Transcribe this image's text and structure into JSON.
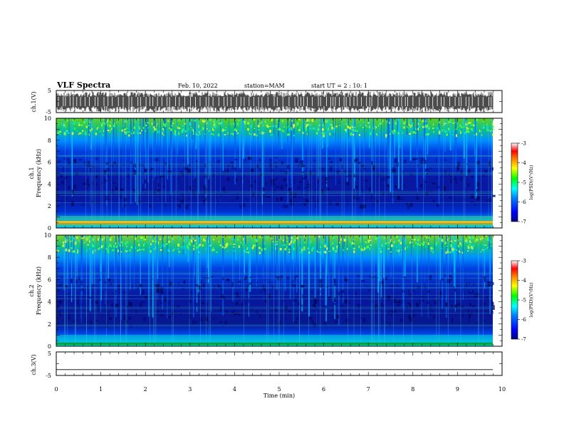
{
  "header": {
    "title": "VLF Spectra",
    "date": "Feb. 10, 2022",
    "station": "station=MAM",
    "start": "start UT = 2 : 10: 1"
  },
  "chart_data": [
    {
      "type": "line",
      "name": "ch1-waveform",
      "ylabel": "ch.1(V)",
      "ylim": [
        -5,
        5
      ],
      "yticks": [
        "5",
        "-5"
      ],
      "xlim": [
        0,
        10
      ]
    },
    {
      "type": "heatmap",
      "name": "ch1-spectrogram",
      "ylabel_line1": "ch.1",
      "ylabel_line2": "Frequency (kHz)",
      "ylim": [
        0,
        10
      ],
      "yticks": [
        "0",
        "2",
        "4",
        "6",
        "8",
        "10"
      ],
      "xlim": [
        0,
        10
      ],
      "colorbar": {
        "label": "log(PSD)(V²/Hz)",
        "range": [
          -7,
          -3
        ],
        "ticks": [
          "-3",
          "-4",
          "-5",
          "-6",
          "-7"
        ],
        "colors": [
          "#000080",
          "#0000ff",
          "#0080ff",
          "#00ffff",
          "#00ff00",
          "#ffff00",
          "#ff8000",
          "#ff0000",
          "#ffffff"
        ]
      }
    },
    {
      "type": "heatmap",
      "name": "ch2-spectrogram",
      "ylabel_line1": "ch.2",
      "ylabel_line2": "Frequency (kHz)",
      "ylim": [
        0,
        10
      ],
      "yticks": [
        "0",
        "2",
        "4",
        "6",
        "8",
        "10"
      ],
      "xlim": [
        0,
        10
      ],
      "colorbar": {
        "label": "log(PSD)(V²/Hz)",
        "range": [
          -7,
          -3
        ],
        "ticks": [
          "-3",
          "-4",
          "-5",
          "-6",
          "-7"
        ],
        "colors": [
          "#000080",
          "#0000ff",
          "#0080ff",
          "#00ffff",
          "#00ff00",
          "#ffff00",
          "#ff8000",
          "#ff0000",
          "#ffffff"
        ]
      }
    },
    {
      "type": "line",
      "name": "ch3-waveform",
      "ylabel": "ch.3(V)",
      "ylim": [
        -5,
        5
      ],
      "yticks": [
        "5",
        "-5"
      ],
      "xlim": [
        0,
        10
      ],
      "xlabel": "Time (min)",
      "xticks": [
        "0",
        "1",
        "2",
        "3",
        "4",
        "5",
        "6",
        "7",
        "8",
        "9",
        "10"
      ],
      "flat_value": -2.5
    }
  ]
}
